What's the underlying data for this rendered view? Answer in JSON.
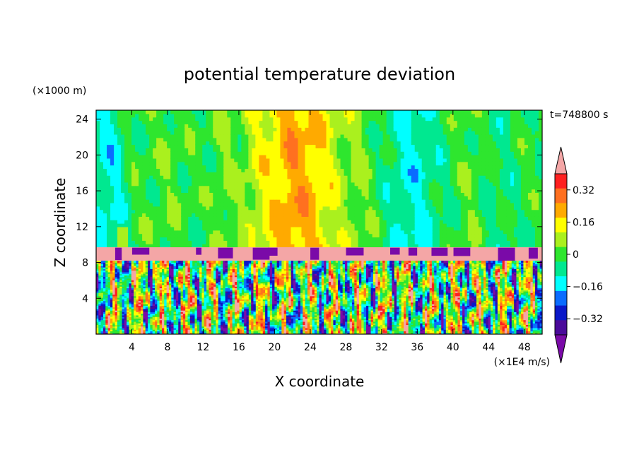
{
  "chart_data": {
    "type": "heatmap",
    "title": "potential temperature deviation",
    "xlabel": "X coordinate",
    "ylabel": "Z coordinate",
    "x_unit": "(×1E4 m/s)",
    "y_unit": "(×1000 m)",
    "time_label": "t=748800 s",
    "xlim": [
      0,
      50
    ],
    "ylim": [
      0,
      25
    ],
    "x_ticks": [
      4,
      8,
      12,
      16,
      20,
      24,
      28,
      32,
      36,
      40,
      44,
      48
    ],
    "y_ticks": [
      4,
      8,
      12,
      16,
      20,
      24
    ],
    "colorbar": {
      "levels": [
        -0.48,
        -0.4,
        -0.32,
        -0.24,
        -0.16,
        -0.08,
        0,
        0.08,
        0.16,
        0.24,
        0.32,
        0.4,
        0.48
      ],
      "tick_labels": [
        "0.32",
        "0.16",
        "0",
        "−0.16",
        "−0.32"
      ],
      "tick_values": [
        0.32,
        0.16,
        0,
        -0.16,
        -0.32
      ],
      "colors": [
        "#7a0aa8",
        "#4a0a9a",
        "#0a18c8",
        "#0a6cff",
        "#00ffff",
        "#00e890",
        "#2ee62e",
        "#aaf01e",
        "#ffff00",
        "#ffaa00",
        "#ff7020",
        "#ff2020",
        "#f4a6a6"
      ],
      "extend": "both"
    },
    "bands": [
      {
        "z": [
          9.7,
          25
        ],
        "description_values": [
          -0.1,
          0.24
        ]
      },
      {
        "z": [
          8.2,
          9.7
        ],
        "value": 0.48
      },
      {
        "z": [
          0,
          8.2
        ],
        "range": [
          -0.48,
          0.48
        ]
      }
    ],
    "upper_profile": [
      {
        "x": 0,
        "v": -0.12
      },
      {
        "x": 2,
        "v": -0.14
      },
      {
        "x": 4,
        "v": -0.02
      },
      {
        "x": 6,
        "v": 0.0
      },
      {
        "x": 8,
        "v": 0.02
      },
      {
        "x": 10,
        "v": 0.0
      },
      {
        "x": 12,
        "v": -0.02
      },
      {
        "x": 14,
        "v": 0.04
      },
      {
        "x": 16,
        "v": 0.02
      },
      {
        "x": 18,
        "v": 0.12
      },
      {
        "x": 20,
        "v": 0.18
      },
      {
        "x": 22,
        "v": 0.26
      },
      {
        "x": 24,
        "v": 0.22
      },
      {
        "x": 26,
        "v": 0.14
      },
      {
        "x": 28,
        "v": 0.06
      },
      {
        "x": 30,
        "v": 0.04
      },
      {
        "x": 32,
        "v": -0.04
      },
      {
        "x": 34,
        "v": -0.12
      },
      {
        "x": 36,
        "v": -0.14
      },
      {
        "x": 38,
        "v": -0.08
      },
      {
        "x": 40,
        "v": -0.02
      },
      {
        "x": 42,
        "v": 0.02
      },
      {
        "x": 44,
        "v": -0.04
      },
      {
        "x": 46,
        "v": -0.06
      },
      {
        "x": 48,
        "v": -0.02
      },
      {
        "x": 50,
        "v": -0.02
      }
    ]
  }
}
